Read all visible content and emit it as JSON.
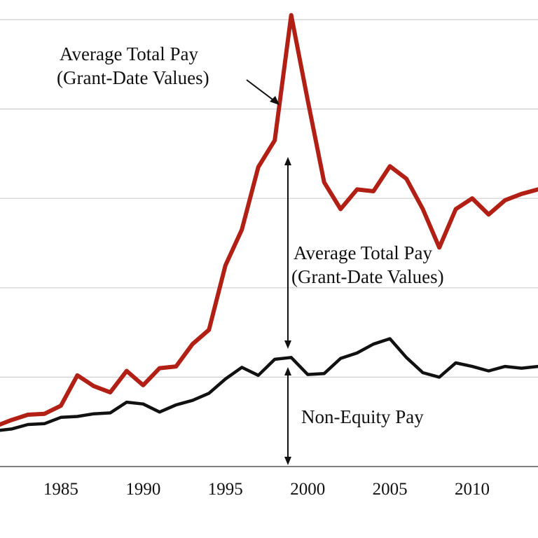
{
  "chart_data": {
    "type": "line",
    "x": [
      1981,
      1982,
      1983,
      1984,
      1985,
      1986,
      1987,
      1988,
      1989,
      1990,
      1991,
      1992,
      1993,
      1994,
      1995,
      1996,
      1997,
      1998,
      1999,
      2000,
      2001,
      2002,
      2003,
      2004,
      2005,
      2006,
      2007,
      2008,
      2009,
      2010,
      2011,
      2012,
      2013,
      2014
    ],
    "x_ticks": [
      1985,
      1990,
      1995,
      2000,
      2005,
      2010
    ],
    "xlim": [
      1981.3,
      2014
    ],
    "ylim": [
      0,
      5
    ],
    "y_gridlines": [
      1,
      2,
      3,
      4,
      5
    ],
    "grid": true,
    "series": [
      {
        "name": "Average Total Pay (Grant-Date Values)",
        "color": "#b22015",
        "values": [
          0.45,
          0.52,
          0.58,
          0.59,
          0.68,
          1.02,
          0.9,
          0.83,
          1.07,
          0.91,
          1.1,
          1.12,
          1.37,
          1.53,
          2.25,
          2.65,
          3.35,
          3.65,
          5.05,
          4.1,
          3.18,
          2.88,
          3.1,
          3.08,
          3.36,
          3.22,
          2.88,
          2.45,
          2.88,
          3.0,
          2.82,
          2.98,
          3.05,
          3.1
        ]
      },
      {
        "name": "Non-Equity Pay",
        "color": "#111111",
        "values": [
          0.4,
          0.42,
          0.47,
          0.48,
          0.55,
          0.56,
          0.59,
          0.6,
          0.72,
          0.7,
          0.61,
          0.69,
          0.74,
          0.82,
          0.98,
          1.11,
          1.02,
          1.2,
          1.22,
          1.03,
          1.04,
          1.21,
          1.27,
          1.37,
          1.43,
          1.22,
          1.05,
          1.0,
          1.16,
          1.12,
          1.07,
          1.12,
          1.1,
          1.12
        ]
      }
    ],
    "annotations": {
      "top_label_line1": "Average Total Pay",
      "top_label_line2": "(Grant-Date Values)",
      "mid_label_line1": "Average Total Pay",
      "mid_label_line2": "(Grant-Date Values)",
      "bottom_label": "Non-Equity Pay"
    }
  }
}
